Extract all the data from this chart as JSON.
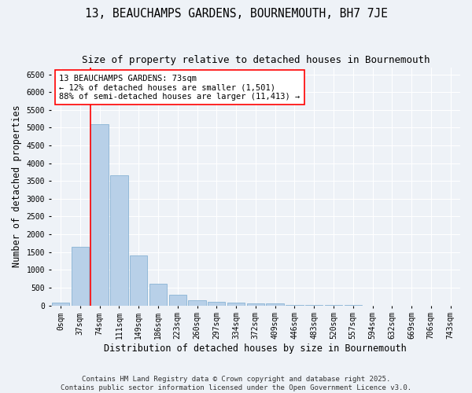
{
  "title": "13, BEAUCHAMPS GARDENS, BOURNEMOUTH, BH7 7JE",
  "subtitle": "Size of property relative to detached houses in Bournemouth",
  "xlabel": "Distribution of detached houses by size in Bournemouth",
  "ylabel": "Number of detached properties",
  "bar_color": "#b8d0e8",
  "bar_edge_color": "#7aaacf",
  "background_color": "#eef2f7",
  "grid_color": "#ffffff",
  "categories": [
    "0sqm",
    "37sqm",
    "74sqm",
    "111sqm",
    "149sqm",
    "186sqm",
    "223sqm",
    "260sqm",
    "297sqm",
    "334sqm",
    "372sqm",
    "409sqm",
    "446sqm",
    "483sqm",
    "520sqm",
    "557sqm",
    "594sqm",
    "632sqm",
    "669sqm",
    "706sqm",
    "743sqm"
  ],
  "values": [
    70,
    1650,
    5100,
    3650,
    1400,
    620,
    310,
    150,
    110,
    80,
    50,
    50,
    5,
    5,
    5,
    5,
    0,
    0,
    0,
    0,
    0
  ],
  "ylim": [
    0,
    6700
  ],
  "yticks": [
    0,
    500,
    1000,
    1500,
    2000,
    2500,
    3000,
    3500,
    4000,
    4500,
    5000,
    5500,
    6000,
    6500
  ],
  "red_line_bar_index": 2,
  "annotation_text": "13 BEAUCHAMPS GARDENS: 73sqm\n← 12% of detached houses are smaller (1,501)\n88% of semi-detached houses are larger (11,413) →",
  "footer_text": "Contains HM Land Registry data © Crown copyright and database right 2025.\nContains public sector information licensed under the Open Government Licence v3.0.",
  "title_fontsize": 10.5,
  "subtitle_fontsize": 9,
  "label_fontsize": 8.5,
  "tick_fontsize": 7,
  "annotation_fontsize": 7.5,
  "footer_fontsize": 6.5
}
